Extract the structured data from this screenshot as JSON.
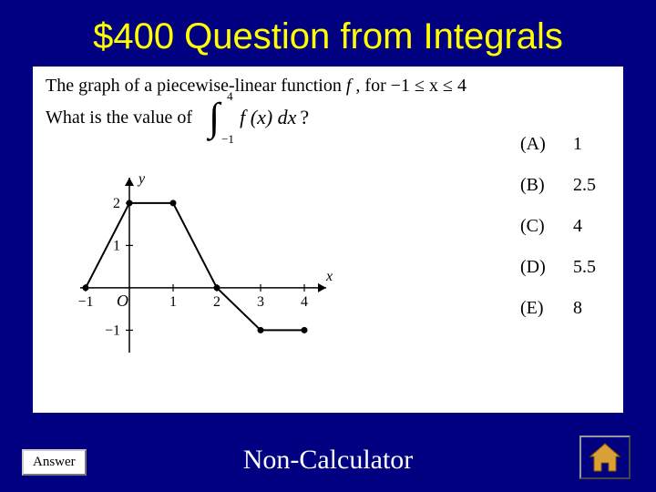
{
  "title": "$400 Question from Integrals",
  "question": {
    "line1_prefix": "The graph of a piecewise-linear function ",
    "line1_func": "f",
    "line1_mid": ", for ",
    "line1_domain": "−1 ≤ x ≤ 4",
    "line2_prefix": "What is the value of",
    "integral_lower": "−1",
    "integral_upper": "4",
    "integral_body": "f (x) dx",
    "integral_suffix": "?"
  },
  "choices": [
    {
      "label": "(A)",
      "value": "1"
    },
    {
      "label": "(B)",
      "value": "2.5"
    },
    {
      "label": "(C)",
      "value": "4"
    },
    {
      "label": "(D)",
      "value": "5.5"
    },
    {
      "label": "(E)",
      "value": "8"
    }
  ],
  "graph": {
    "type": "piecewise-line",
    "xlim": [
      -1,
      4.5
    ],
    "ylim": [
      -1.4,
      2.6
    ],
    "xticks": [
      -1,
      1,
      2,
      3,
      4
    ],
    "yticks": [
      -1,
      1,
      2
    ],
    "x_label": "x",
    "y_label": "y",
    "origin_label": "O",
    "points": [
      {
        "x": -1,
        "y": 0
      },
      {
        "x": 0,
        "y": 2
      },
      {
        "x": 1,
        "y": 2
      },
      {
        "x": 2,
        "y": 0
      },
      {
        "x": 3,
        "y": -1
      },
      {
        "x": 4,
        "y": -1
      }
    ],
    "axis_color": "#000000",
    "line_color": "#000000",
    "line_width": 2,
    "marker_radius": 3.5,
    "font_size": 16,
    "background": "#ffffff"
  },
  "answer_button": "Answer",
  "footer_label": "Non-Calculator",
  "colors": {
    "page_bg": "#000080",
    "title_color": "#ffff00",
    "panel_bg": "#ffffff",
    "footer_text": "#ffffff",
    "home_icon": "#d9a035"
  }
}
